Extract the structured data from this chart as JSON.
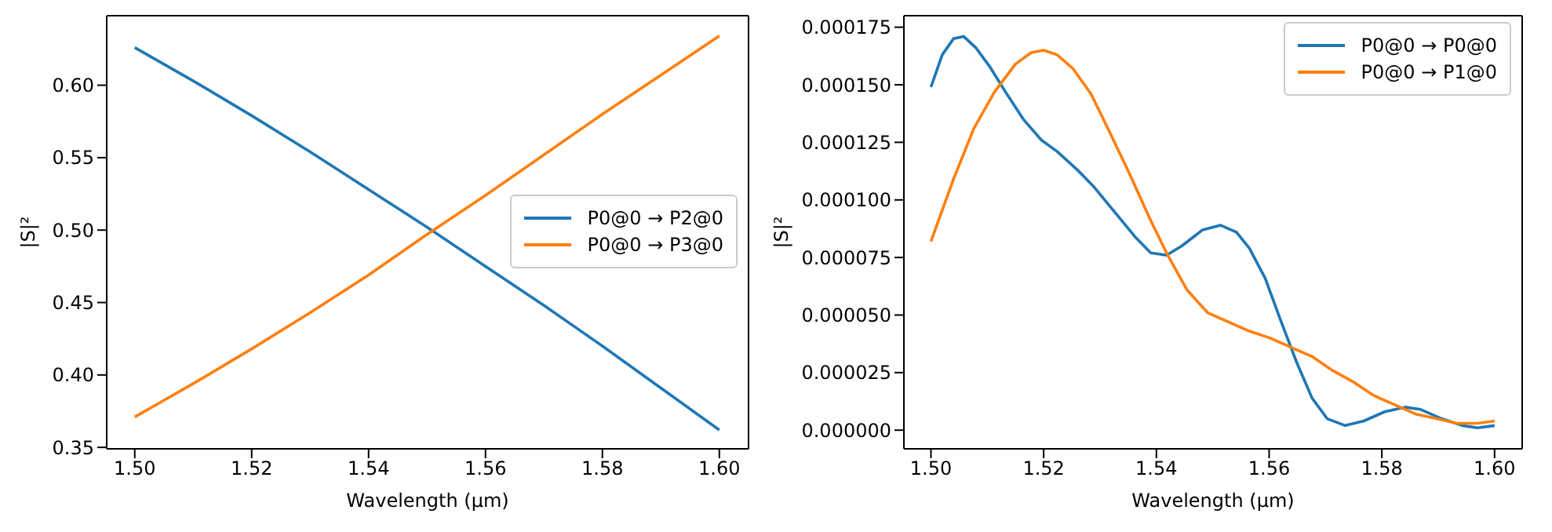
{
  "chart_data": [
    {
      "type": "line",
      "xlabel": "Wavelength (μm)",
      "ylabel": "|S|²",
      "legend": "center right",
      "grid": false,
      "marker": "none",
      "line_style": "solid",
      "xlim": [
        1.4952,
        1.605
      ],
      "ylim": [
        0.349,
        0.648
      ],
      "xticks": [
        {
          "value": 1.5,
          "label": "1.50"
        },
        {
          "value": 1.52,
          "label": "1.52"
        },
        {
          "value": 1.54,
          "label": "1.54"
        },
        {
          "value": 1.56,
          "label": "1.56"
        },
        {
          "value": 1.58,
          "label": "1.58"
        },
        {
          "value": 1.6,
          "label": "1.60"
        }
      ],
      "yticks": [
        {
          "value": 0.35,
          "label": "0.35"
        },
        {
          "value": 0.4,
          "label": "0.40"
        },
        {
          "value": 0.45,
          "label": "0.45"
        },
        {
          "value": 0.5,
          "label": "0.50"
        },
        {
          "value": 0.55,
          "label": "0.55"
        },
        {
          "value": 0.6,
          "label": "0.60"
        }
      ],
      "x": [
        1.5,
        1.51,
        1.52,
        1.53,
        1.54,
        1.55,
        1.56,
        1.57,
        1.58,
        1.59,
        1.6
      ],
      "series": [
        {
          "name": "P0@0 → P2@0",
          "color": "#1f77b4",
          "values": [
            0.626,
            0.603,
            0.579,
            0.554,
            0.528,
            0.502,
            0.475,
            0.448,
            0.42,
            0.391,
            0.362
          ]
        },
        {
          "name": "P0@0 → P3@0",
          "color": "#ff7f0e",
          "values": [
            0.371,
            0.394,
            0.418,
            0.443,
            0.469,
            0.497,
            0.524,
            0.552,
            0.58,
            0.607,
            0.634
          ]
        }
      ]
    },
    {
      "type": "line",
      "xlabel": "Wavelength (μm)",
      "ylabel": "|S|²",
      "legend": "top right",
      "grid": false,
      "marker": "none",
      "line_style": "solid",
      "xlim": [
        1.4952,
        1.6049
      ],
      "ylim": [
        -8.1e-06,
        0.00018
      ],
      "xticks": [
        {
          "value": 1.5,
          "label": "1.50"
        },
        {
          "value": 1.52,
          "label": "1.52"
        },
        {
          "value": 1.54,
          "label": "1.54"
        },
        {
          "value": 1.56,
          "label": "1.56"
        },
        {
          "value": 1.58,
          "label": "1.58"
        },
        {
          "value": 1.6,
          "label": "1.60"
        }
      ],
      "yticks": [
        {
          "value": 0,
          "label": "0.000000"
        },
        {
          "value": 2.5e-05,
          "label": "0.000025"
        },
        {
          "value": 5e-05,
          "label": "0.000050"
        },
        {
          "value": 7.5e-05,
          "label": "0.000075"
        },
        {
          "value": 0.0001,
          "label": "0.000100"
        },
        {
          "value": 0.000125,
          "label": "0.000125"
        },
        {
          "value": 0.00015,
          "label": "0.000150"
        },
        {
          "value": 0.000175,
          "label": "0.000175"
        }
      ],
      "series": [
        {
          "name": "P0@0 → P0@0",
          "color": "#1f77b4",
          "x": [
            1.5,
            1.502,
            1.504,
            1.5058,
            1.508,
            1.5104,
            1.5132,
            1.5164,
            1.5196,
            1.5224,
            1.526,
            1.5288,
            1.5325,
            1.5362,
            1.539,
            1.5418,
            1.5445,
            1.5482,
            1.5514,
            1.5542,
            1.5565,
            1.5593,
            1.562,
            1.5648,
            1.5676,
            1.5703,
            1.5735,
            1.5768,
            1.5805,
            1.5841,
            1.5869,
            1.5906,
            1.5943,
            1.597,
            1.6
          ],
          "values": [
            0.000149,
            0.000163,
            0.00017,
            0.000171,
            0.000166,
            0.000158,
            0.000147,
            0.000135,
            0.000126,
            0.000121,
            0.000113,
            0.000106,
            9.5e-05,
            8.4e-05,
            7.7e-05,
            7.6e-05,
            8e-05,
            8.7e-05,
            8.9e-05,
            8.6e-05,
            7.9e-05,
            6.6e-05,
            4.8e-05,
            3e-05,
            1.4e-05,
            5e-06,
            2e-06,
            4e-06,
            8e-06,
            1e-05,
            9e-06,
            5e-06,
            2e-06,
            1e-06,
            2e-06
          ]
        },
        {
          "name": "P0@0 → P1@0",
          "color": "#ff7f0e",
          "x": [
            1.5,
            1.504,
            1.5076,
            1.5113,
            1.515,
            1.5178,
            1.52,
            1.5224,
            1.5252,
            1.5284,
            1.5316,
            1.5353,
            1.539,
            1.5418,
            1.5454,
            1.5491,
            1.5528,
            1.5565,
            1.5602,
            1.5639,
            1.5676,
            1.5712,
            1.5749,
            1.5786,
            1.5823,
            1.586,
            1.5897,
            1.5933,
            1.597,
            1.6
          ],
          "values": [
            8.2e-05,
            0.000109,
            0.000131,
            0.000147,
            0.000159,
            0.000164,
            0.000165,
            0.000163,
            0.000157,
            0.000146,
            0.00013,
            0.000111,
            9.1e-05,
            7.7e-05,
            6.1e-05,
            5.1e-05,
            4.7e-05,
            4.3e-05,
            4e-05,
            3.6e-05,
            3.2e-05,
            2.6e-05,
            2.1e-05,
            1.5e-05,
            1.1e-05,
            7e-06,
            5e-06,
            3e-06,
            3e-06,
            4e-06
          ]
        }
      ]
    }
  ]
}
